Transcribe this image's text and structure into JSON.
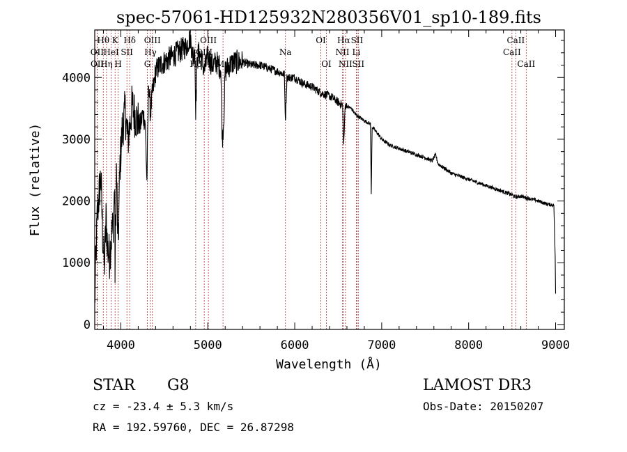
{
  "chart_data": {
    "type": "line",
    "title": "spec-57061-HD125932N280356V01_sp10-189.fits",
    "xlabel": "Wavelength (Å)",
    "ylabel": "Flux (relative)",
    "xlim": [
      3700,
      9100
    ],
    "ylim": [
      -80,
      4770
    ],
    "xticks": [
      4000,
      5000,
      6000,
      7000,
      8000,
      9000
    ],
    "yticks": [
      0,
      1000,
      2000,
      3000,
      4000
    ],
    "series": [
      {
        "name": "spectrum",
        "x": [
          3700,
          3710,
          3730,
          3750,
          3770,
          3790,
          3810,
          3830,
          3850,
          3870,
          3890,
          3910,
          3930,
          3933,
          3950,
          3968,
          3990,
          4020,
          4050,
          4080,
          4102,
          4130,
          4160,
          4190,
          4220,
          4250,
          4280,
          4300,
          4320,
          4340,
          4360,
          4400,
          4450,
          4500,
          4550,
          4600,
          4650,
          4700,
          4750,
          4800,
          4830,
          4850,
          4861,
          4880,
          4900,
          4930,
          4960,
          5000,
          5050,
          5100,
          5150,
          5167,
          5183,
          5200,
          5250,
          5300,
          5400,
          5500,
          5600,
          5700,
          5800,
          5880,
          5893,
          5910,
          6000,
          6100,
          6200,
          6300,
          6400,
          6500,
          6550,
          6563,
          6580,
          6650,
          6700,
          6800,
          6870,
          6880,
          6890,
          6950,
          7000,
          7100,
          7200,
          7300,
          7400,
          7500,
          7580,
          7620,
          7650,
          7700,
          7800,
          7900,
          8000,
          8100,
          8200,
          8300,
          8400,
          8498,
          8542,
          8600,
          8662,
          8700,
          8800,
          8900,
          8980,
          8995,
          9000
        ],
        "y": [
          300,
          900,
          1800,
          2100,
          2400,
          1500,
          900,
          1700,
          1200,
          1100,
          1400,
          1600,
          2200,
          900,
          2500,
          1200,
          2600,
          3200,
          3450,
          3000,
          3200,
          3550,
          3400,
          3300,
          3200,
          3400,
          3300,
          2300,
          3950,
          3400,
          3700,
          4100,
          4200,
          4250,
          4300,
          4350,
          4400,
          4450,
          4500,
          4650,
          4300,
          4500,
          3500,
          4350,
          4400,
          4300,
          4100,
          4350,
          4200,
          4250,
          4150,
          3000,
          3300,
          4100,
          4200,
          4250,
          4250,
          4200,
          4200,
          4150,
          4100,
          4050,
          3300,
          4000,
          4000,
          3900,
          3850,
          3750,
          3700,
          3600,
          3550,
          2900,
          3550,
          3500,
          3400,
          3300,
          3250,
          2100,
          3200,
          3100,
          3000,
          2900,
          2850,
          2800,
          2750,
          2700,
          2650,
          2750,
          2600,
          2550,
          2450,
          2400,
          2350,
          2300,
          2250,
          2200,
          2150,
          2100,
          2060,
          2080,
          2050,
          2040,
          2000,
          1950,
          1930,
          1100,
          500
        ]
      }
    ],
    "lines": [
      {
        "name": "Hθ",
        "wl": 3798,
        "row": 0
      },
      {
        "name": "OII",
        "wl": 3727,
        "row": 1
      },
      {
        "name": "OII",
        "wl": 3729,
        "row": 2
      },
      {
        "name": "K",
        "wl": 3934,
        "row": 0
      },
      {
        "name": "HeI",
        "wl": 3889,
        "row": 1
      },
      {
        "name": "Hη",
        "wl": 3835,
        "row": 2
      },
      {
        "name": "H",
        "wl": 3969,
        "row": 2
      },
      {
        "name": "SII",
        "wl": 4070,
        "row": 1
      },
      {
        "name": "Hδ",
        "wl": 4102,
        "row": 0
      },
      {
        "name": "OIII",
        "wl": 4363,
        "row": 0
      },
      {
        "name": "Hγ",
        "wl": 4341,
        "row": 1
      },
      {
        "name": "G",
        "wl": 4305,
        "row": 2
      },
      {
        "name": "OIII",
        "wl": 5007,
        "row": 0
      },
      {
        "name": "OIII",
        "wl": 4959,
        "row": 1
      },
      {
        "name": "Hβ",
        "wl": 4861,
        "row": 2
      },
      {
        "name": "Mg",
        "wl": 5175,
        "row": 2
      },
      {
        "name": "Na",
        "wl": 5893,
        "row": 1
      },
      {
        "name": "OI",
        "wl": 6300,
        "row": 0
      },
      {
        "name": "OI",
        "wl": 6364,
        "row": 2
      },
      {
        "name": "Hα",
        "wl": 6563,
        "row": 0
      },
      {
        "name": "NII",
        "wl": 6548,
        "row": 1
      },
      {
        "name": "NII",
        "wl": 6583,
        "row": 2
      },
      {
        "name": "SII",
        "wl": 6716,
        "row": 0
      },
      {
        "name": "Li",
        "wl": 6708,
        "row": 1
      },
      {
        "name": "SII",
        "wl": 6731,
        "row": 2
      },
      {
        "name": "CaII",
        "wl": 8542,
        "row": 0
      },
      {
        "name": "CaII",
        "wl": 8498,
        "row": 1
      },
      {
        "name": "CaII",
        "wl": 8662,
        "row": 2
      }
    ]
  },
  "info": {
    "object_type": "STAR",
    "subclass": "G8",
    "survey": "LAMOST DR3",
    "cz": "cz = -23.4 ± 5.3 km/s",
    "obs_date": "Obs-Date: 20150207",
    "coords": "RA = 192.59760, DEC =  26.87298"
  }
}
